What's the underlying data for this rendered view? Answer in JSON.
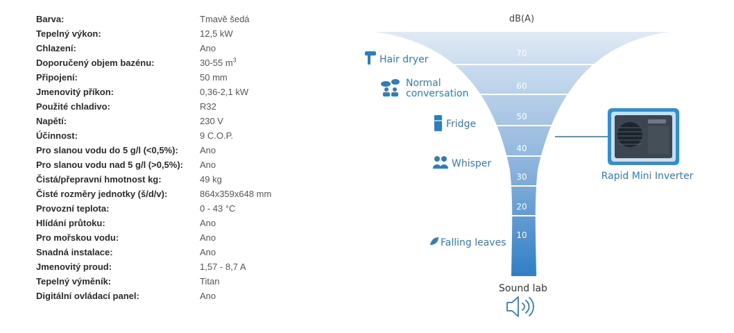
{
  "specs": [
    {
      "label": "Barva:",
      "value": "Tmavě šedá"
    },
    {
      "label": "Tepelný výkon:",
      "value": "12,5 kW"
    },
    {
      "label": "Chlazení:",
      "value": "Ano"
    },
    {
      "label": "Doporučený objem bazénu:",
      "value": "30-55 m",
      "sup": "3"
    },
    {
      "label": "Připojení:",
      "value": "50 mm"
    },
    {
      "label": "Jmenovitý příkon:",
      "value": "0,36-2,1 kW"
    },
    {
      "label": "Použité chladivo:",
      "value": "R32"
    },
    {
      "label": "Napětí:",
      "value": "230 V"
    },
    {
      "label": "Účinnost:",
      "value": "9 C.O.P."
    },
    {
      "label": "Pro slanou vodu do 5 g/l (<0,5%):",
      "value": "Ano"
    },
    {
      "label": "Pro slanou vodu nad 5 g/l (>0,5%):",
      "value": "Ano"
    },
    {
      "label": "Čistá/přepravní hmotnost kg:",
      "value": "49 kg"
    },
    {
      "label": "Čisté rozměry jednotky (š/d/v):",
      "value": "864x359x648 mm"
    },
    {
      "label": "Provozní teplota:",
      "value": "0 - 43 °C"
    },
    {
      "label": "Hlídání průtoku:",
      "value": "Ano"
    },
    {
      "label": "Pro mořskou vodu:",
      "value": "Ano"
    },
    {
      "label": "Snadná instalace:",
      "value": "Ano"
    },
    {
      "label": "Jmenovitý proud:",
      "value": "1,57 - 8,7 A"
    },
    {
      "label": "Tepelný výměník:",
      "value": "Titan"
    },
    {
      "label": "Digitální ovládací panel:",
      "value": "Ano"
    }
  ],
  "sound": {
    "unit": "dB(A)",
    "levels": [
      "70",
      "60",
      "50",
      "40",
      "30",
      "20",
      "10"
    ],
    "references": {
      "hair_dryer": "Hair dryer",
      "normal_line1": "Normal",
      "normal_line2": "conversation",
      "fridge": "Fridge",
      "whisper": "Whisper",
      "falling_leaves": "Falling leaves"
    },
    "product": "Rapid Mini Inverter",
    "sound_lab": "Sound lab",
    "colors": {
      "top": "#dce8f4",
      "bottom": "#2f7fc6",
      "label": "#2d7dc0",
      "product_frame": "#2f8fd0"
    }
  }
}
